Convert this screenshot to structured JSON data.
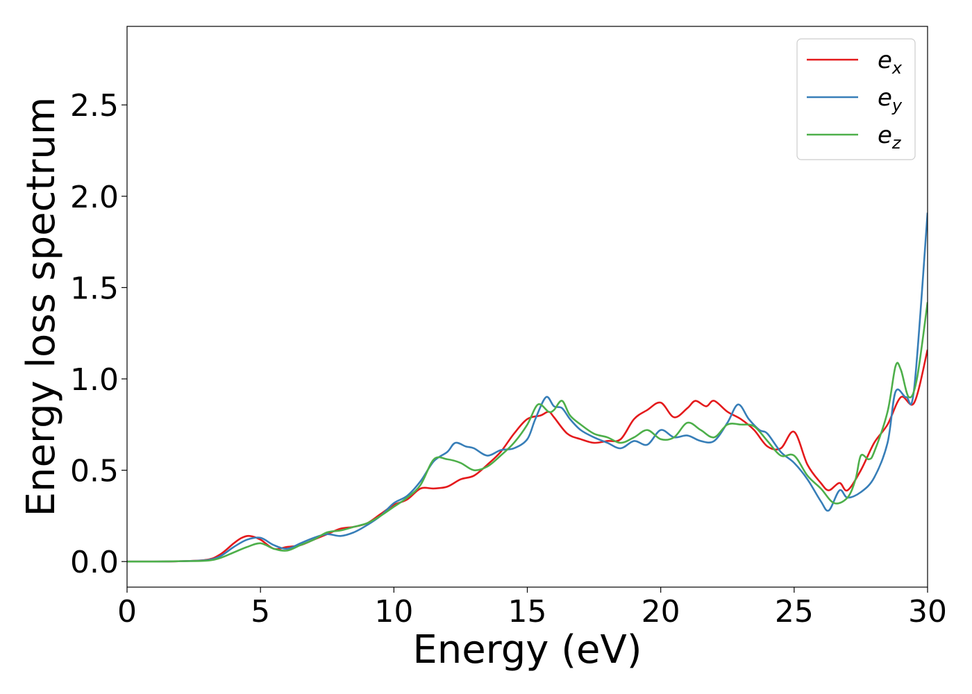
{
  "chart_data": {
    "type": "line",
    "xlabel": "Energy (eV)",
    "ylabel": "Energy loss spectrum",
    "xlim": [
      0,
      30
    ],
    "ylim": [
      -0.14,
      2.93
    ],
    "x_ticks": [
      "0",
      "5",
      "10",
      "15",
      "20",
      "25",
      "30"
    ],
    "y_ticks": [
      "0.0",
      "0.5",
      "1.0",
      "1.5",
      "2.0",
      "2.5"
    ],
    "grid": false,
    "legend_position": "top-right",
    "series": [
      {
        "name": "e",
        "subscript": "x",
        "color": "#e41a1c",
        "x": [
          0,
          1,
          2,
          3,
          3.5,
          4,
          4.3,
          4.6,
          5,
          5.5,
          6,
          6.5,
          7,
          7.5,
          8,
          8.5,
          9,
          9.5,
          10,
          10.5,
          11,
          11.5,
          12,
          12.5,
          13,
          13.5,
          14,
          14.5,
          15,
          15.5,
          15.8,
          16,
          16.5,
          17,
          17.5,
          18,
          18.5,
          19,
          19.5,
          20,
          20.5,
          21,
          21.3,
          21.7,
          22,
          22.5,
          23,
          23.5,
          24,
          24.5,
          25,
          25.5,
          26,
          26.3,
          26.7,
          27,
          27.5,
          28,
          28.5,
          29,
          29.5,
          30
        ],
        "y": [
          0,
          0,
          0.002,
          0.01,
          0.04,
          0.1,
          0.13,
          0.14,
          0.12,
          0.07,
          0.08,
          0.09,
          0.12,
          0.15,
          0.18,
          0.19,
          0.21,
          0.26,
          0.31,
          0.34,
          0.4,
          0.4,
          0.41,
          0.45,
          0.47,
          0.53,
          0.6,
          0.7,
          0.78,
          0.8,
          0.82,
          0.79,
          0.7,
          0.67,
          0.65,
          0.66,
          0.67,
          0.78,
          0.83,
          0.87,
          0.79,
          0.84,
          0.88,
          0.85,
          0.88,
          0.82,
          0.78,
          0.72,
          0.63,
          0.62,
          0.71,
          0.53,
          0.43,
          0.39,
          0.43,
          0.39,
          0.5,
          0.65,
          0.75,
          0.9,
          0.87,
          1.16
        ]
      },
      {
        "name": "e",
        "subscript": "y",
        "color": "#377eb8",
        "x": [
          0,
          1,
          2,
          3,
          3.5,
          4,
          4.5,
          5,
          5.5,
          6,
          6.5,
          7,
          7.5,
          8,
          8.5,
          9,
          9.5,
          10,
          10.5,
          11,
          11.5,
          12,
          12.3,
          12.7,
          13,
          13.5,
          14,
          14.5,
          15,
          15.3,
          15.7,
          16,
          16.3,
          16.6,
          17,
          17.5,
          18,
          18.5,
          19,
          19.5,
          20,
          20.5,
          21,
          21.5,
          22,
          22.5,
          22.9,
          23.3,
          23.7,
          24,
          24.5,
          25,
          25.5,
          26,
          26.3,
          26.7,
          27,
          27.5,
          28,
          28.5,
          28.8,
          29.2,
          29.5,
          30
        ],
        "y": [
          0,
          0,
          0.002,
          0.008,
          0.03,
          0.08,
          0.12,
          0.13,
          0.09,
          0.07,
          0.1,
          0.13,
          0.15,
          0.14,
          0.16,
          0.2,
          0.25,
          0.32,
          0.36,
          0.44,
          0.55,
          0.6,
          0.65,
          0.63,
          0.62,
          0.58,
          0.61,
          0.62,
          0.67,
          0.78,
          0.9,
          0.85,
          0.84,
          0.78,
          0.72,
          0.68,
          0.65,
          0.62,
          0.66,
          0.64,
          0.72,
          0.68,
          0.69,
          0.66,
          0.66,
          0.76,
          0.86,
          0.78,
          0.72,
          0.7,
          0.6,
          0.54,
          0.45,
          0.33,
          0.28,
          0.39,
          0.35,
          0.38,
          0.46,
          0.65,
          0.93,
          0.9,
          0.95,
          1.91
        ]
      },
      {
        "name": "e",
        "subscript": "z",
        "color": "#4daf4a",
        "x": [
          0,
          1,
          2,
          3,
          3.5,
          4,
          4.5,
          5,
          5.5,
          6,
          6.5,
          7,
          7.5,
          8,
          8.5,
          9,
          9.5,
          10,
          10.5,
          11,
          11.5,
          12,
          12.5,
          13,
          13.5,
          14,
          14.5,
          15,
          15.4,
          15.8,
          16,
          16.3,
          16.6,
          17,
          17.5,
          18,
          18.5,
          19,
          19.5,
          20,
          20.5,
          21,
          21.5,
          22,
          22.5,
          23,
          23.5,
          24,
          24.5,
          25,
          25.5,
          26,
          26.5,
          27,
          27.3,
          27.5,
          27.8,
          28,
          28.5,
          28.8,
          29,
          29.3,
          29.6,
          30
        ],
        "y": [
          0,
          0,
          0.002,
          0.005,
          0.02,
          0.05,
          0.08,
          0.1,
          0.07,
          0.06,
          0.09,
          0.12,
          0.16,
          0.17,
          0.19,
          0.21,
          0.25,
          0.3,
          0.35,
          0.42,
          0.56,
          0.56,
          0.54,
          0.5,
          0.52,
          0.58,
          0.65,
          0.75,
          0.86,
          0.82,
          0.83,
          0.88,
          0.8,
          0.75,
          0.7,
          0.68,
          0.65,
          0.68,
          0.72,
          0.67,
          0.68,
          0.76,
          0.72,
          0.68,
          0.75,
          0.75,
          0.74,
          0.66,
          0.58,
          0.58,
          0.47,
          0.4,
          0.32,
          0.35,
          0.45,
          0.58,
          0.56,
          0.6,
          0.82,
          1.07,
          1.05,
          0.9,
          1.0,
          1.42
        ]
      }
    ]
  }
}
